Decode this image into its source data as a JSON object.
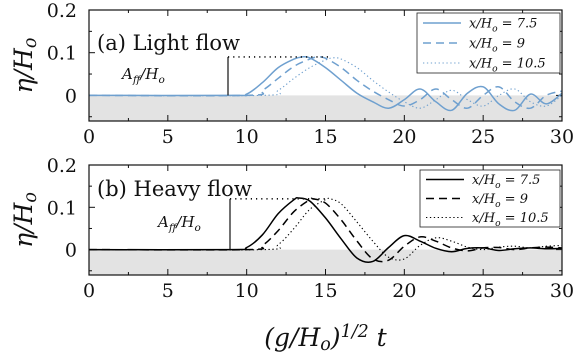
{
  "chart_data": [
    {
      "type": "line",
      "title": "(a) Light flow",
      "ylabel": "η/H_o",
      "xlim": [
        0,
        30
      ],
      "ylim": [
        -0.06,
        0.2
      ],
      "xticks": [
        "0",
        "5",
        "10",
        "15",
        "20",
        "25",
        "30"
      ],
      "yticks": [
        "0",
        "0.1",
        "0.2"
      ],
      "annotation": "A_ff/H_o",
      "annotation_value": 0.09,
      "legend_position": "top-right",
      "colors": {
        "line": "#6fa0cf",
        "shade": "#e3e3e3"
      },
      "series": [
        {
          "name": "x/H_o = 7.5",
          "dash": "solid",
          "x": [
            0,
            9,
            10,
            11,
            12,
            13,
            13.5,
            14,
            15,
            16,
            17,
            18,
            19,
            20,
            21,
            22,
            23,
            24,
            25,
            26,
            27,
            28,
            29,
            30
          ],
          "y": [
            0,
            0,
            0.003,
            0.03,
            0.065,
            0.085,
            0.09,
            0.088,
            0.065,
            0.035,
            0.005,
            -0.015,
            -0.03,
            -0.01,
            0.015,
            -0.015,
            -0.035,
            0.005,
            0.02,
            -0.02,
            -0.035,
            0.003,
            -0.02,
            0.005
          ]
        },
        {
          "name": "x/H_o = 9",
          "dash": "dashed",
          "x": [
            0,
            10,
            11,
            12,
            13,
            14,
            14.5,
            15,
            16,
            17,
            18,
            19,
            20,
            21,
            22,
            23,
            24,
            25,
            26,
            27,
            28,
            29,
            30
          ],
          "y": [
            0,
            0,
            0.012,
            0.04,
            0.068,
            0.085,
            0.09,
            0.087,
            0.065,
            0.035,
            0.01,
            -0.01,
            -0.025,
            -0.01,
            0.015,
            -0.01,
            -0.03,
            0.0,
            0.02,
            -0.015,
            -0.03,
            0.0,
            0.01
          ]
        },
        {
          "name": "x/H_o = 10.5",
          "dash": "dotted",
          "x": [
            0,
            11,
            12,
            13,
            14,
            15,
            15.5,
            16,
            17,
            18,
            19,
            20,
            21,
            22,
            23,
            24,
            25,
            26,
            27,
            28,
            29,
            30
          ],
          "y": [
            0,
            0,
            0.012,
            0.04,
            0.065,
            0.083,
            0.088,
            0.085,
            0.065,
            0.035,
            0.008,
            -0.015,
            -0.03,
            -0.01,
            0.012,
            -0.01,
            -0.025,
            0.0,
            0.015,
            -0.015,
            -0.025,
            0.0
          ]
        }
      ]
    },
    {
      "type": "line",
      "title": "(b) Heavy flow",
      "ylabel": "η/H_o",
      "xlabel": "(g/H_o)^1/2 t",
      "xlim": [
        0,
        30
      ],
      "ylim": [
        -0.06,
        0.2
      ],
      "xticks": [
        "0",
        "5",
        "10",
        "15",
        "20",
        "25",
        "30"
      ],
      "yticks": [
        "0",
        "0.1",
        "0.2"
      ],
      "annotation": "A_ff/H_o",
      "annotation_value": 0.12,
      "legend_position": "top-right",
      "colors": {
        "line": "#000000",
        "shade": "#e3e3e3"
      },
      "series": [
        {
          "name": "x/H_o = 7.5",
          "dash": "solid",
          "x": [
            0,
            9,
            10,
            11,
            12,
            13,
            13.3,
            14,
            15,
            16,
            17,
            18,
            19,
            20,
            21,
            22,
            23,
            24,
            25,
            26,
            27,
            28,
            29,
            30
          ],
          "y": [
            0,
            0,
            0.005,
            0.035,
            0.085,
            0.118,
            0.122,
            0.115,
            0.075,
            0.025,
            -0.02,
            -0.028,
            0.005,
            0.033,
            0.02,
            0.003,
            -0.005,
            0.003,
            0.004,
            -0.002,
            0.002,
            0.004,
            0.002,
            0.003
          ]
        },
        {
          "name": "x/H_o = 9",
          "dash": "dashed",
          "x": [
            0,
            10,
            11,
            12,
            13,
            14,
            14.2,
            15,
            16,
            17,
            18,
            19,
            20,
            21,
            22,
            23,
            24,
            25,
            26,
            27,
            28,
            29,
            30
          ],
          "y": [
            0,
            0,
            0.01,
            0.045,
            0.09,
            0.118,
            0.12,
            0.11,
            0.07,
            0.02,
            -0.022,
            -0.025,
            0.008,
            0.03,
            0.02,
            0.004,
            -0.003,
            0.004,
            0.005,
            0.0,
            0.004,
            0.006,
            0.004
          ]
        },
        {
          "name": "x/H_o = 10.5",
          "dash": "dotted",
          "x": [
            0,
            11,
            12,
            13,
            14,
            15,
            15.3,
            16,
            17,
            18,
            19,
            20,
            21,
            22,
            23,
            24,
            25,
            26,
            27,
            28,
            29,
            30
          ],
          "y": [
            0,
            0,
            0.012,
            0.05,
            0.095,
            0.118,
            0.12,
            0.108,
            0.065,
            0.02,
            -0.018,
            -0.022,
            0.01,
            0.028,
            0.02,
            0.006,
            0.0,
            0.006,
            0.008,
            0.004,
            0.008,
            0.01
          ]
        }
      ]
    }
  ]
}
